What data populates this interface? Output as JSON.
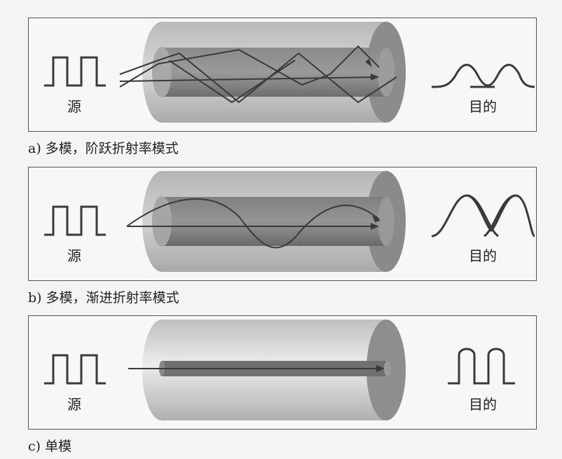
{
  "panels": [
    {
      "source_label": "源",
      "destination_label": "目的",
      "caption": "a) 多模，阶跃折射率模式",
      "ray_mode": "zigzag",
      "output_pulse": "broad"
    },
    {
      "source_label": "源",
      "destination_label": "目的",
      "caption": "b) 多模，渐进折射率模式",
      "ray_mode": "sine",
      "output_pulse": "overlapping"
    },
    {
      "source_label": "源",
      "destination_label": "目的",
      "caption": "c) 单模",
      "ray_mode": "single",
      "output_pulse": "square"
    }
  ],
  "colors": {
    "line": "#3a3a3a",
    "cladding": "#c4c4c4",
    "core_dark": "#7a7a7a",
    "single_core": "#6a6a6a"
  }
}
